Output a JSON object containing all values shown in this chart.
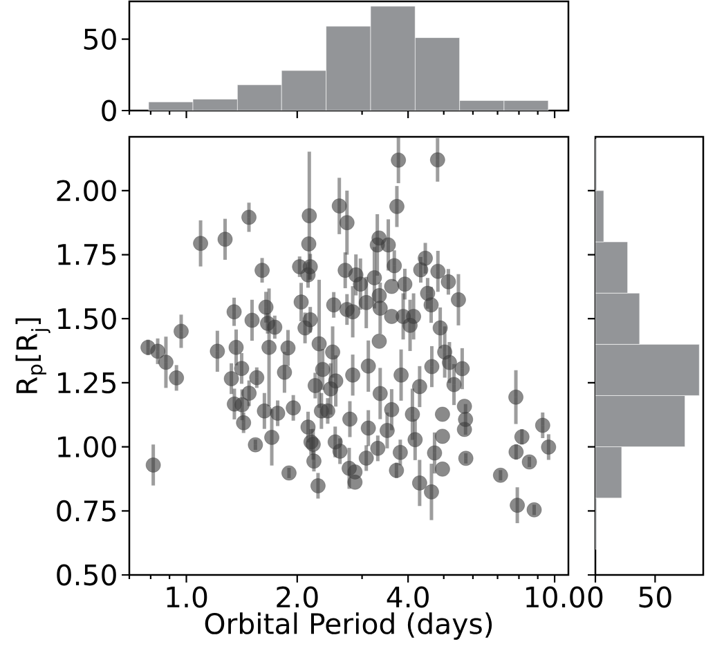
{
  "chart_data": [
    {
      "type": "histogram",
      "bins": [
        0.79,
        1.042,
        1.376,
        1.814,
        2.396,
        3.165,
        4.18,
        5.52,
        7.29,
        9.61
      ],
      "values": [
        6,
        8,
        18,
        28,
        59,
        73,
        51,
        7,
        7
      ],
      "color": "#939598",
      "log": "x",
      "xlim": [
        0.7,
        10.9
      ],
      "ylim": [
        0,
        76.4
      ],
      "xticks": [
        {
          "value": 0.7,
          "label": null
        },
        {
          "value": 0.8,
          "label": null
        },
        {
          "value": 0.9,
          "label": null
        },
        1,
        2,
        {
          "value": 3,
          "label": null
        },
        4,
        {
          "value": 5,
          "label": null
        },
        {
          "value": 6,
          "label": null
        },
        {
          "value": 7,
          "label": null
        },
        {
          "value": 8,
          "label": null
        },
        {
          "value": 9,
          "label": null
        },
        10
      ],
      "yticks": [
        0,
        50
      ],
      "tick_labels": "y"
    },
    {
      "type": "scatter",
      "xlabel": "Orbital Period (days)",
      "ylabel": "R$_{p}$[R$_{j}$]",
      "color": "#3c3c3c",
      "marker": "circle",
      "log": "x",
      "xlim": [
        0.7,
        10.9
      ],
      "ylim": [
        0.5,
        2.21
      ],
      "xticks": [
        {
          "value": 0.7,
          "label": null
        },
        {
          "value": 0.8,
          "label": null
        },
        {
          "value": 0.9,
          "label": null
        },
        {
          "value": 1,
          "label": "1.0"
        },
        {
          "value": 2,
          "label": "2.0"
        },
        {
          "value": 3,
          "label": null
        },
        {
          "value": 4,
          "label": "4.0"
        },
        {
          "value": 5,
          "label": null
        },
        {
          "value": 6,
          "label": null
        },
        {
          "value": 7,
          "label": null
        },
        {
          "value": 8,
          "label": null
        },
        {
          "value": 9,
          "label": null
        },
        {
          "value": 10,
          "label": "10.0"
        }
      ],
      "yticks": [
        {
          "value": 0.5,
          "label": "0.50"
        },
        {
          "value": 0.75,
          "label": "0.75"
        },
        {
          "value": 1.0,
          "label": "1.00"
        },
        {
          "value": 1.25,
          "label": "1.25"
        },
        {
          "value": 1.5,
          "label": "1.50"
        },
        {
          "value": 1.75,
          "label": "1.75"
        },
        {
          "value": 2.0,
          "label": "2.00"
        }
      ],
      "x": [
        1.093,
        1.274,
        1.479,
        2.157,
        2.602,
        2.73,
        1.606,
        2.15,
        2.03,
        2.17,
        2.14,
        2.7,
        1.645,
        1.348,
        1.508,
        1.662,
        1.738,
        0.968,
        2.05,
        2.513,
        2.73,
        2.17,
        2.1,
        2.294,
        0.787,
        0.836,
        0.88,
        1.214,
        1.365,
        1.677,
        1.888,
        2.496,
        0.94,
        0.813,
        1.325,
        1.413,
        1.553,
        1.48,
        1.35,
        1.417,
        1.43,
        1.54,
        1.706,
        1.629,
        1.77,
        1.952,
        1.847,
        1.9,
        2.278,
        2.22,
        2.21,
        2.14,
        2.18,
        2.327,
        2.42,
        2.238,
        2.345,
        2.465,
        2.545,
        2.536,
        2.613,
        2.768,
        3.766,
        4.81,
        3.73,
        3.336,
        3.3,
        3.535,
        4.455,
        4.33,
        4.82,
        5.146,
        5.48,
        3.67,
        3.24,
        3.92,
        2.887,
        2.97,
        3.08,
        3.34,
        3.61,
        4.52,
        4.62,
        4.89,
        4.14,
        3.88,
        3.61,
        3.36,
        2.83,
        3.34,
        4.05,
        5.03,
        7.85,
        9.28,
        8.15,
        9.63,
        7.86,
        8.54,
        7.13,
        7.92,
        8.8,
        5.74,
        4.96,
        4.63,
        4.3,
        3.72,
        4.72,
        3.81,
        3.31,
        3.08,
        2.87,
        2.87,
        3.51,
        4.18,
        4.96,
        5.69,
        5.73,
        5.69,
        5.33,
        5.61,
        4.64,
        5.18,
        3.12,
        3.61,
        4.11,
        3.12,
        2.78,
        3.36,
        4.3,
        4.96,
        3.83,
        2.83
      ],
      "values": [
        1.794,
        1.81,
        1.896,
        1.902,
        1.94,
        1.875,
        1.689,
        1.792,
        1.703,
        1.703,
        1.671,
        1.689,
        1.545,
        1.527,
        1.494,
        1.482,
        1.467,
        1.451,
        1.565,
        1.554,
        1.536,
        1.496,
        1.464,
        1.402,
        1.388,
        1.373,
        1.33,
        1.373,
        1.388,
        1.388,
        1.386,
        1.37,
        1.269,
        0.929,
        1.266,
        1.306,
        1.27,
        1.209,
        1.167,
        1.164,
        1.094,
        1.008,
        1.037,
        1.14,
        1.131,
        1.152,
        1.291,
        0.898,
        0.848,
        0.944,
        1.01,
        1.077,
        1.019,
        1.14,
        1.14,
        1.239,
        1.302,
        1.226,
        1.257,
        1.019,
        0.983,
        0.916,
        2.119,
        2.12,
        1.938,
        1.815,
        1.788,
        1.788,
        1.736,
        1.691,
        1.685,
        1.644,
        1.574,
        1.707,
        1.66,
        1.635,
        1.671,
        1.635,
        1.563,
        1.59,
        1.626,
        1.599,
        1.554,
        1.464,
        1.509,
        1.509,
        1.509,
        1.541,
        1.527,
        1.412,
        1.474,
        1.37,
        1.194,
        1.084,
        1.039,
        0.999,
        0.98,
        0.941,
        0.889,
        0.772,
        0.754,
        0.955,
        0.913,
        0.824,
        0.859,
        0.908,
        0.976,
        0.978,
        0.994,
        0.956,
        0.902,
        0.862,
        1.064,
        1.028,
        1.041,
        1.068,
        1.107,
        1.158,
        1.243,
        1.305,
        1.313,
        1.329,
        1.315,
        1.145,
        1.127,
        1.073,
        1.108,
        1.208,
        1.235,
        1.127,
        1.28,
        1.28
      ],
      "errors": [
        0.09,
        0.08,
        0.057,
        0.25,
        0.11,
        0.125,
        0.048,
        null,
        0.04,
        0.05,
        0.05,
        0.07,
        0.06,
        0.055,
        0.08,
        0.04,
        0.045,
        0.065,
        0.075,
        0.05,
        0.06,
        0.05,
        0.06,
        0.25,
        0.03,
        0.05,
        0.1,
        0.08,
        0.07,
        0.23,
        0.07,
        0.1,
        0.05,
        0.08,
        0.06,
        0.06,
        0.04,
        0.05,
        0.06,
        0.06,
        0.04,
        0.02,
        0.11,
        0.07,
        0.05,
        0.05,
        0.08,
        0.02,
        0.05,
        0.04,
        0.06,
        0.06,
        0.05,
        0.07,
        0.05,
        0.05,
        0.08,
        0.1,
        0.1,
        0.06,
        0.05,
        0.08,
        0.09,
        0.085,
        0.08,
        null,
        0.12,
        0.1,
        0.06,
        0.05,
        0.08,
        0.05,
        0.1,
        0.06,
        0.12,
        0.06,
        0.08,
        0.1,
        0.1,
        null,
        null,
        0.06,
        0.07,
        0.08,
        0.09,
        0.09,
        null,
        0.1,
        0.1,
        null,
        0.1,
        0.1,
        0.105,
        0.05,
        0.03,
        0.05,
        0.03,
        0.02,
        0.02,
        0.07,
        0.02,
        0.02,
        null,
        0.11,
        0.09,
        0.03,
        0.08,
        0.05,
        0.05,
        0.05,
        null,
        null,
        0.07,
        0.08,
        null,
        null,
        0.06,
        null,
        0.08,
        0.08,
        0.08,
        0.08,
        0.1,
        0.08,
        0.1,
        0.07,
        0.07,
        0.1,
        0.08,
        null,
        0.1,
        0.08
      ]
    },
    {
      "type": "histogram",
      "orientation": "horizontal",
      "bins": [
        0.6,
        0.8,
        1.0,
        1.2,
        1.4,
        1.6,
        1.8,
        2.0,
        2.2
      ],
      "values": [
        1,
        22,
        75,
        87,
        37,
        27,
        7,
        1
      ],
      "color": "#939598",
      "xlim": [
        0,
        90.3
      ],
      "ylim": [
        0.5,
        2.21
      ],
      "xticks": [
        0,
        50
      ],
      "yticks": [
        0.5,
        0.75,
        1.0,
        1.25,
        1.5,
        1.75,
        2.0
      ],
      "tick_labels": "x"
    }
  ]
}
